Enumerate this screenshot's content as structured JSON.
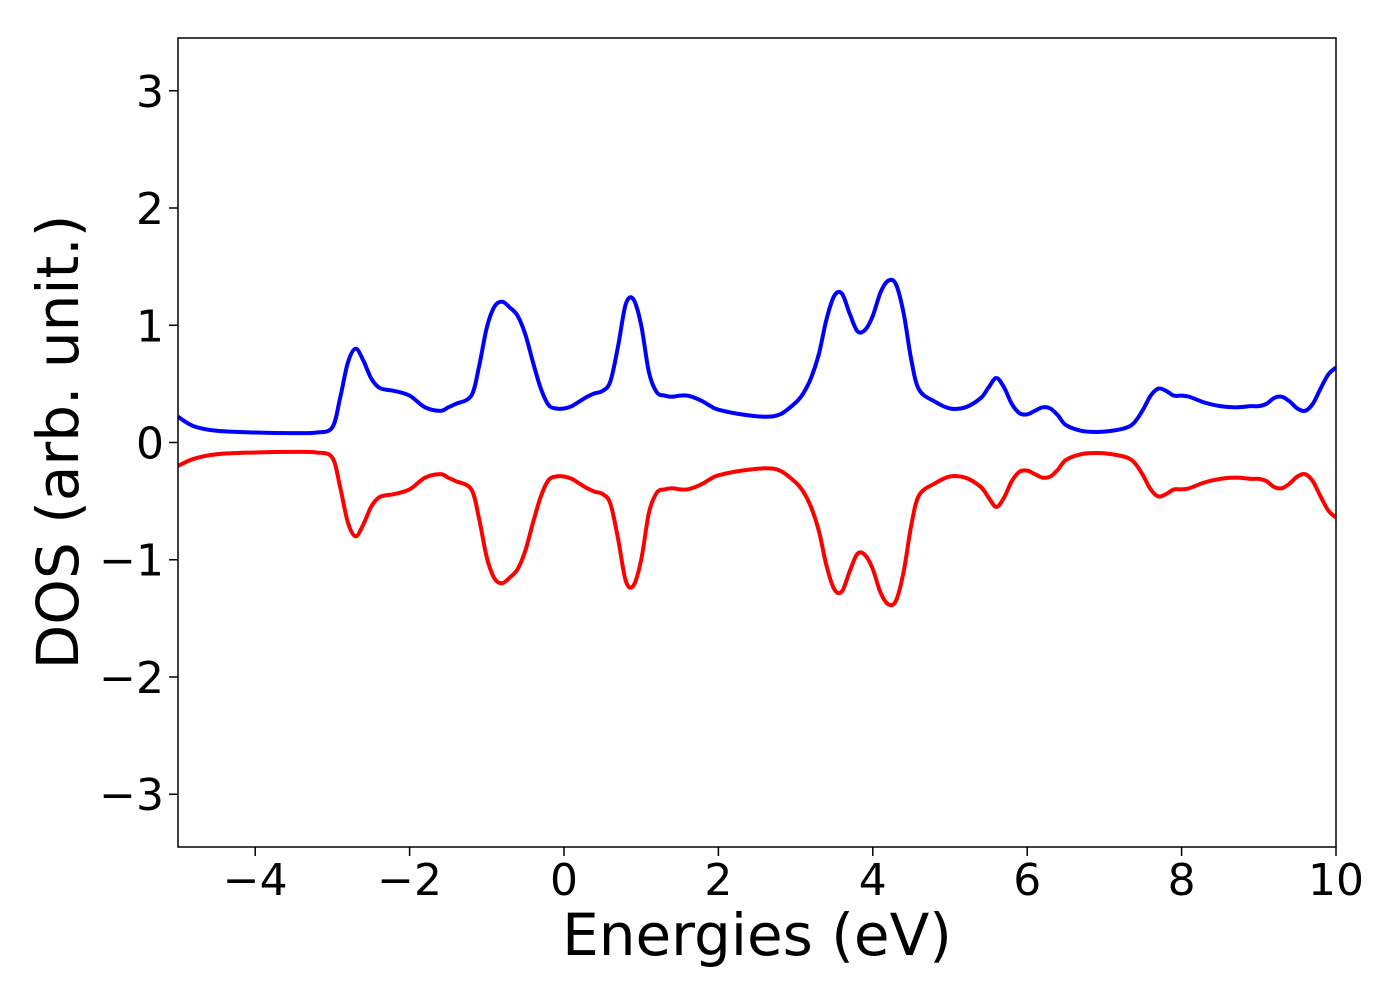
{
  "chart_data": {
    "type": "line",
    "title": "",
    "xlabel": "Energies (eV)",
    "ylabel": "DOS (arb. unit.)",
    "xlim": [
      -5,
      10
    ],
    "ylim": [
      -3.45,
      3.45
    ],
    "xticks": [
      -4,
      -2,
      0,
      2,
      4,
      6,
      8,
      10
    ],
    "yticks": [
      -3,
      -2,
      -1,
      0,
      1,
      2,
      3
    ],
    "xtick_labels": [
      "−4",
      "−2",
      "0",
      "2",
      "4",
      "6",
      "8",
      "10"
    ],
    "ytick_labels": [
      "−3",
      "−2",
      "−1",
      "0",
      "1",
      "2",
      "3"
    ],
    "grid": false,
    "legend": "none",
    "series": [
      {
        "color": "#0000ff",
        "x": [
          -5.0,
          -4.8,
          -4.5,
          -4.0,
          -3.5,
          -3.2,
          -3.0,
          -2.9,
          -2.8,
          -2.7,
          -2.6,
          -2.5,
          -2.4,
          -2.3,
          -2.2,
          -2.0,
          -1.8,
          -1.6,
          -1.5,
          -1.4,
          -1.2,
          -1.1,
          -1.0,
          -0.9,
          -0.8,
          -0.7,
          -0.6,
          -0.5,
          -0.4,
          -0.3,
          -0.2,
          -0.1,
          0.0,
          0.1,
          0.2,
          0.3,
          0.4,
          0.5,
          0.6,
          0.7,
          0.8,
          0.9,
          1.0,
          1.1,
          1.2,
          1.3,
          1.4,
          1.5,
          1.6,
          1.7,
          1.8,
          1.9,
          2.0,
          2.3,
          2.6,
          2.8,
          3.0,
          3.1,
          3.2,
          3.3,
          3.4,
          3.5,
          3.6,
          3.7,
          3.8,
          3.9,
          4.0,
          4.1,
          4.2,
          4.3,
          4.4,
          4.5,
          4.6,
          4.8,
          5.0,
          5.2,
          5.4,
          5.5,
          5.6,
          5.7,
          5.8,
          5.9,
          6.0,
          6.1,
          6.2,
          6.3,
          6.4,
          6.5,
          6.7,
          6.9,
          7.1,
          7.3,
          7.4,
          7.5,
          7.6,
          7.7,
          7.8,
          7.9,
          8.0,
          8.1,
          8.3,
          8.5,
          8.7,
          8.9,
          9.0,
          9.1,
          9.2,
          9.3,
          9.4,
          9.5,
          9.6,
          9.7,
          9.8,
          9.9,
          10.0
        ],
        "y": [
          0.22,
          0.14,
          0.1,
          0.085,
          0.08,
          0.085,
          0.13,
          0.38,
          0.68,
          0.8,
          0.7,
          0.55,
          0.47,
          0.45,
          0.44,
          0.4,
          0.3,
          0.27,
          0.3,
          0.33,
          0.4,
          0.65,
          0.98,
          1.16,
          1.2,
          1.15,
          1.08,
          0.92,
          0.68,
          0.46,
          0.32,
          0.29,
          0.29,
          0.31,
          0.35,
          0.39,
          0.42,
          0.44,
          0.52,
          0.82,
          1.18,
          1.22,
          1.0,
          0.6,
          0.43,
          0.4,
          0.39,
          0.4,
          0.4,
          0.38,
          0.35,
          0.31,
          0.28,
          0.24,
          0.22,
          0.24,
          0.34,
          0.42,
          0.55,
          0.75,
          1.05,
          1.25,
          1.27,
          1.1,
          0.95,
          0.96,
          1.08,
          1.28,
          1.38,
          1.35,
          1.1,
          0.7,
          0.45,
          0.35,
          0.29,
          0.3,
          0.38,
          0.47,
          0.55,
          0.47,
          0.33,
          0.25,
          0.24,
          0.27,
          0.3,
          0.29,
          0.23,
          0.15,
          0.1,
          0.09,
          0.1,
          0.13,
          0.18,
          0.28,
          0.4,
          0.46,
          0.44,
          0.4,
          0.4,
          0.39,
          0.34,
          0.31,
          0.3,
          0.31,
          0.31,
          0.33,
          0.38,
          0.39,
          0.35,
          0.29,
          0.27,
          0.33,
          0.46,
          0.58,
          0.64
        ]
      },
      {
        "color": "#ff0000",
        "x": [
          -5.0,
          -4.8,
          -4.5,
          -4.0,
          -3.5,
          -3.2,
          -3.0,
          -2.9,
          -2.8,
          -2.7,
          -2.6,
          -2.5,
          -2.4,
          -2.3,
          -2.2,
          -2.0,
          -1.8,
          -1.6,
          -1.5,
          -1.4,
          -1.2,
          -1.1,
          -1.0,
          -0.9,
          -0.8,
          -0.7,
          -0.6,
          -0.5,
          -0.4,
          -0.3,
          -0.2,
          -0.1,
          0.0,
          0.1,
          0.2,
          0.3,
          0.4,
          0.5,
          0.6,
          0.7,
          0.8,
          0.9,
          1.0,
          1.1,
          1.2,
          1.3,
          1.4,
          1.5,
          1.6,
          1.7,
          1.8,
          1.9,
          2.0,
          2.3,
          2.6,
          2.8,
          3.0,
          3.1,
          3.2,
          3.3,
          3.4,
          3.5,
          3.6,
          3.7,
          3.8,
          3.9,
          4.0,
          4.1,
          4.2,
          4.3,
          4.4,
          4.5,
          4.6,
          4.8,
          5.0,
          5.2,
          5.4,
          5.5,
          5.6,
          5.7,
          5.8,
          5.9,
          6.0,
          6.1,
          6.2,
          6.3,
          6.4,
          6.5,
          6.7,
          6.9,
          7.1,
          7.3,
          7.4,
          7.5,
          7.6,
          7.7,
          7.8,
          7.9,
          8.0,
          8.1,
          8.3,
          8.5,
          8.7,
          8.9,
          9.0,
          9.1,
          9.2,
          9.3,
          9.4,
          9.5,
          9.6,
          9.7,
          9.8,
          9.9,
          10.0
        ],
        "y": [
          -0.2,
          -0.14,
          -0.1,
          -0.085,
          -0.08,
          -0.085,
          -0.13,
          -0.38,
          -0.68,
          -0.8,
          -0.7,
          -0.55,
          -0.47,
          -0.45,
          -0.44,
          -0.4,
          -0.3,
          -0.27,
          -0.3,
          -0.33,
          -0.4,
          -0.65,
          -0.98,
          -1.16,
          -1.2,
          -1.15,
          -1.08,
          -0.92,
          -0.68,
          -0.46,
          -0.32,
          -0.29,
          -0.29,
          -0.31,
          -0.35,
          -0.39,
          -0.42,
          -0.44,
          -0.52,
          -0.82,
          -1.18,
          -1.22,
          -1.0,
          -0.6,
          -0.43,
          -0.4,
          -0.39,
          -0.4,
          -0.4,
          -0.38,
          -0.35,
          -0.31,
          -0.28,
          -0.24,
          -0.22,
          -0.24,
          -0.34,
          -0.42,
          -0.55,
          -0.75,
          -1.05,
          -1.25,
          -1.27,
          -1.1,
          -0.95,
          -0.96,
          -1.08,
          -1.28,
          -1.38,
          -1.35,
          -1.1,
          -0.7,
          -0.45,
          -0.35,
          -0.29,
          -0.3,
          -0.38,
          -0.47,
          -0.55,
          -0.47,
          -0.33,
          -0.25,
          -0.24,
          -0.27,
          -0.3,
          -0.29,
          -0.23,
          -0.15,
          -0.1,
          -0.09,
          -0.1,
          -0.13,
          -0.18,
          -0.28,
          -0.4,
          -0.46,
          -0.44,
          -0.4,
          -0.4,
          -0.39,
          -0.34,
          -0.31,
          -0.3,
          -0.31,
          -0.31,
          -0.33,
          -0.38,
          -0.39,
          -0.35,
          -0.29,
          -0.27,
          -0.33,
          -0.46,
          -0.58,
          -0.64
        ]
      }
    ]
  }
}
